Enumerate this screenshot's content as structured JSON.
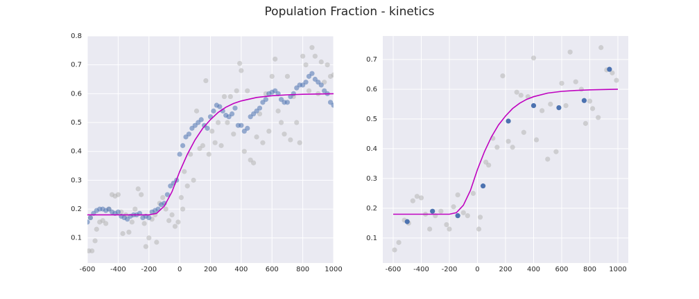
{
  "title": "Population Fraction - kinetics",
  "chart_data": [
    {
      "type": "scatter",
      "xlim": [
        -600,
        1000
      ],
      "ylim": [
        0.013,
        0.8
      ],
      "xticks": [
        -600,
        -400,
        -200,
        0,
        200,
        400,
        600,
        800,
        1000
      ],
      "yticks": [
        0.1,
        0.2,
        0.3,
        0.4,
        0.5,
        0.6,
        0.7,
        0.8
      ],
      "grid": true,
      "series": [
        {
          "kind": "scatter",
          "color": "#b4b4b4",
          "x": [
            -590,
            -580,
            -570,
            -550,
            -540,
            -520,
            -500,
            -480,
            -460,
            -440,
            -420,
            -400,
            -380,
            -370,
            -350,
            -330,
            -310,
            -290,
            -270,
            -250,
            -230,
            -220,
            -200,
            -180,
            -160,
            -150,
            -130,
            -110,
            -90,
            -70,
            -50,
            -30,
            -10,
            10,
            20,
            30,
            50,
            70,
            90,
            110,
            130,
            150,
            170,
            190,
            210,
            230,
            250,
            270,
            290,
            310,
            330,
            350,
            370,
            390,
            400,
            420,
            440,
            460,
            480,
            500,
            520,
            540,
            560,
            580,
            600,
            620,
            640,
            660,
            680,
            700,
            720,
            740,
            760,
            780,
            800,
            820,
            840,
            860,
            880,
            900,
            920,
            940,
            960,
            980,
            1000
          ],
          "values": [
            0.055,
            0.17,
            0.055,
            0.09,
            0.13,
            0.155,
            0.16,
            0.15,
            0.2,
            0.25,
            0.245,
            0.25,
            0.19,
            0.115,
            0.18,
            0.12,
            0.155,
            0.2,
            0.27,
            0.25,
            0.15,
            0.07,
            0.1,
            0.165,
            0.18,
            0.085,
            0.22,
            0.24,
            0.2,
            0.16,
            0.18,
            0.14,
            0.155,
            0.24,
            0.2,
            0.33,
            0.28,
            0.39,
            0.3,
            0.54,
            0.41,
            0.42,
            0.645,
            0.39,
            0.47,
            0.43,
            0.5,
            0.42,
            0.59,
            0.5,
            0.59,
            0.46,
            0.61,
            0.705,
            0.68,
            0.4,
            0.61,
            0.37,
            0.36,
            0.45,
            0.53,
            0.43,
            0.6,
            0.47,
            0.66,
            0.72,
            0.54,
            0.5,
            0.46,
            0.66,
            0.44,
            0.59,
            0.5,
            0.43,
            0.73,
            0.7,
            0.61,
            0.76,
            0.73,
            0.6,
            0.71,
            0.64,
            0.7,
            0.66,
            0.665
          ]
        },
        {
          "kind": "scatter",
          "color": "#4c72b0",
          "x": [
            -600,
            -580,
            -560,
            -540,
            -520,
            -500,
            -480,
            -460,
            -440,
            -420,
            -400,
            -380,
            -360,
            -340,
            -320,
            -300,
            -280,
            -260,
            -240,
            -220,
            -200,
            -180,
            -160,
            -140,
            -120,
            -100,
            -80,
            -60,
            -40,
            -20,
            0,
            20,
            40,
            60,
            80,
            100,
            120,
            140,
            160,
            180,
            200,
            220,
            240,
            260,
            280,
            300,
            320,
            340,
            360,
            380,
            400,
            420,
            440,
            460,
            480,
            500,
            520,
            540,
            560,
            580,
            600,
            620,
            640,
            660,
            680,
            700,
            720,
            740,
            760,
            780,
            800,
            820,
            840,
            860,
            880,
            900,
            920,
            940,
            960,
            980,
            1000
          ],
          "values": [
            0.155,
            0.17,
            0.185,
            0.195,
            0.2,
            0.2,
            0.195,
            0.2,
            0.19,
            0.185,
            0.19,
            0.175,
            0.17,
            0.165,
            0.175,
            0.18,
            0.18,
            0.185,
            0.17,
            0.175,
            0.17,
            0.19,
            0.195,
            0.2,
            0.215,
            0.22,
            0.25,
            0.28,
            0.29,
            0.3,
            0.39,
            0.42,
            0.45,
            0.46,
            0.48,
            0.49,
            0.5,
            0.51,
            0.49,
            0.48,
            0.52,
            0.54,
            0.56,
            0.555,
            0.54,
            0.525,
            0.52,
            0.53,
            0.55,
            0.49,
            0.49,
            0.47,
            0.48,
            0.52,
            0.53,
            0.54,
            0.55,
            0.57,
            0.58,
            0.6,
            0.605,
            0.61,
            0.6,
            0.58,
            0.57,
            0.57,
            0.59,
            0.6,
            0.62,
            0.63,
            0.63,
            0.64,
            0.66,
            0.67,
            0.65,
            0.64,
            0.63,
            0.61,
            0.6,
            0.57,
            0.56
          ]
        },
        {
          "kind": "line",
          "color": "#bf00bf",
          "x": [
            -600,
            -200,
            -150,
            -100,
            -50,
            0,
            50,
            100,
            150,
            200,
            250,
            300,
            350,
            400,
            500,
            600,
            700,
            800,
            1000
          ],
          "values": [
            0.18,
            0.18,
            0.185,
            0.21,
            0.26,
            0.33,
            0.39,
            0.44,
            0.48,
            0.51,
            0.535,
            0.553,
            0.566,
            0.575,
            0.587,
            0.593,
            0.596,
            0.598,
            0.6
          ]
        }
      ]
    },
    {
      "type": "scatter",
      "xlim": [
        -674,
        1074
      ],
      "ylim": [
        0.016,
        0.779
      ],
      "xticks": [
        -600,
        -400,
        -200,
        0,
        200,
        400,
        600,
        800,
        1000
      ],
      "yticks": [
        0.1,
        0.2,
        0.3,
        0.4,
        0.5,
        0.6,
        0.7
      ],
      "grid": true,
      "series": [
        {
          "kind": "scatter",
          "color": "#b4b4b4",
          "x": [
            -590,
            -560,
            -520,
            -490,
            -460,
            -430,
            -400,
            -370,
            -340,
            -300,
            -260,
            -220,
            -200,
            -170,
            -140,
            -100,
            -70,
            -30,
            10,
            20,
            60,
            80,
            110,
            140,
            180,
            220,
            250,
            280,
            310,
            330,
            360,
            400,
            420,
            460,
            500,
            520,
            560,
            600,
            630,
            660,
            700,
            740,
            770,
            800,
            820,
            860,
            880,
            920,
            960,
            990
          ],
          "values": [
            0.06,
            0.085,
            0.16,
            0.15,
            0.225,
            0.24,
            0.235,
            0.18,
            0.13,
            0.175,
            0.19,
            0.145,
            0.13,
            0.205,
            0.245,
            0.185,
            0.175,
            0.25,
            0.13,
            0.17,
            0.355,
            0.345,
            0.435,
            0.405,
            0.645,
            0.425,
            0.405,
            0.59,
            0.58,
            0.455,
            0.575,
            0.705,
            0.43,
            0.528,
            0.365,
            0.55,
            0.39,
            0.62,
            0.545,
            0.725,
            0.625,
            0.6,
            0.485,
            0.56,
            0.535,
            0.505,
            0.74,
            0.665,
            0.655,
            0.63
          ]
        },
        {
          "kind": "scatter",
          "color": "#4c72b0",
          "x": [
            -500,
            -320,
            -140,
            40,
            220,
            400,
            580,
            760,
            940
          ],
          "values": [
            0.155,
            0.19,
            0.175,
            0.275,
            0.493,
            0.545,
            0.538,
            0.562,
            0.667
          ]
        },
        {
          "kind": "line",
          "color": "#bf00bf",
          "x": [
            -600,
            -200,
            -150,
            -100,
            -50,
            0,
            50,
            100,
            150,
            200,
            250,
            300,
            350,
            400,
            500,
            600,
            700,
            800,
            1000
          ],
          "values": [
            0.18,
            0.18,
            0.185,
            0.21,
            0.26,
            0.33,
            0.39,
            0.44,
            0.48,
            0.51,
            0.535,
            0.553,
            0.566,
            0.575,
            0.587,
            0.593,
            0.596,
            0.598,
            0.6
          ]
        }
      ]
    }
  ]
}
